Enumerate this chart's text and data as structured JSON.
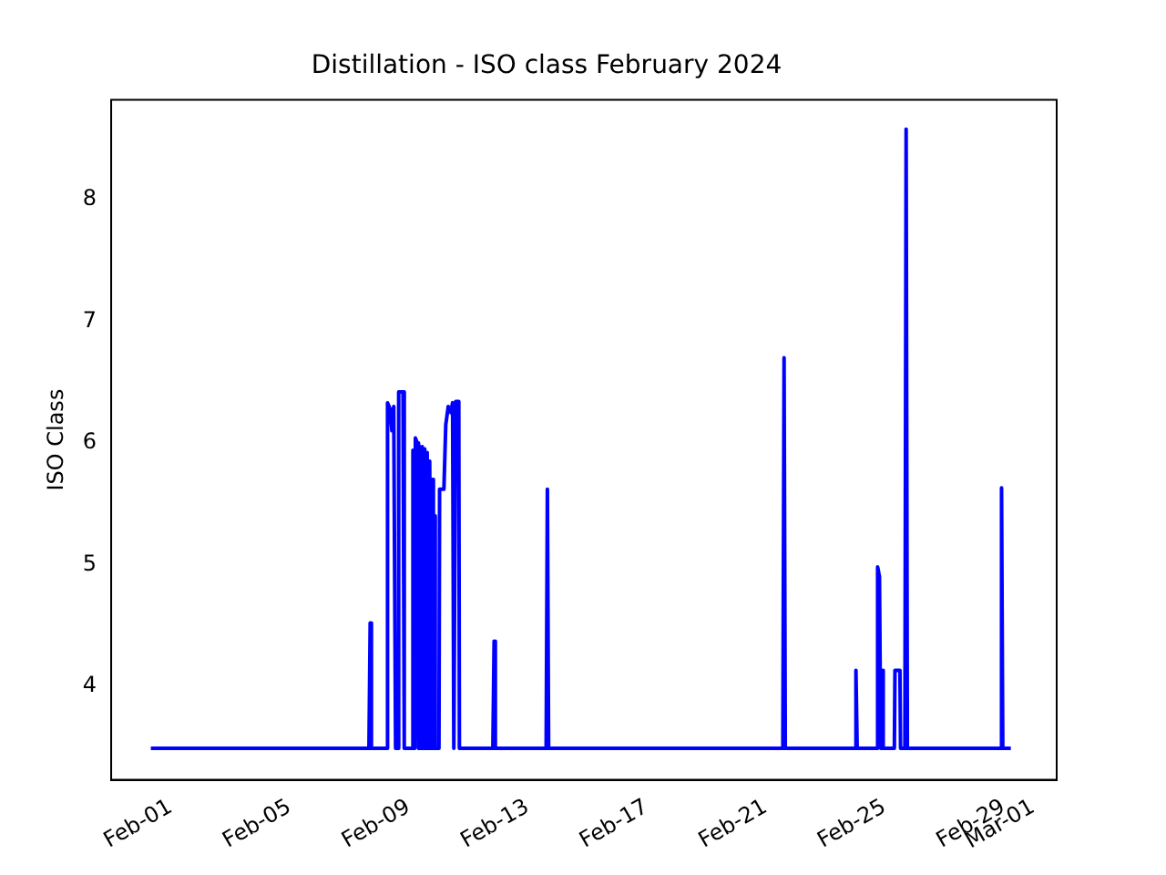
{
  "chart_data": {
    "type": "line",
    "title": "Distillation - ISO class February 2024",
    "ylabel": "ISO Class",
    "xlim": [
      "2024-01-30T00:00",
      "2024-03-01T19:00"
    ],
    "ylim": [
      3.23,
      8.82
    ],
    "yticks": [
      4,
      5,
      6,
      7,
      8
    ],
    "xticks": [
      {
        "value": "2024-02-01",
        "label": "Feb-01"
      },
      {
        "value": "2024-02-05",
        "label": "Feb-05"
      },
      {
        "value": "2024-02-09",
        "label": "Feb-09"
      },
      {
        "value": "2024-02-13",
        "label": "Feb-13"
      },
      {
        "value": "2024-02-17",
        "label": "Feb-17"
      },
      {
        "value": "2024-02-21",
        "label": "Feb-21"
      },
      {
        "value": "2024-02-25",
        "label": "Feb-25"
      },
      {
        "value": "2024-02-29",
        "label": "Feb-29"
      },
      {
        "value": "2024-03-01",
        "label": "Mar-01"
      }
    ],
    "x": [
      "2024-01-31T08:00",
      "2024-02-07T16:00",
      "2024-02-07T17:00",
      "2024-02-07T18:00",
      "2024-02-08T06:30",
      "2024-02-08T07:00",
      "2024-02-08T09:00",
      "2024-02-08T10:30",
      "2024-02-08T12:00",
      "2024-02-08T13:00",
      "2024-02-08T13:30",
      "2024-02-08T15:30",
      "2024-02-08T16:00",
      "2024-02-08T19:30",
      "2024-02-08T20:30",
      "2024-02-09T03:00",
      "2024-02-09T03:30",
      "2024-02-09T05:00",
      "2024-02-09T05:30",
      "2024-02-09T07:00",
      "2024-02-09T08:00",
      "2024-02-09T09:00",
      "2024-02-09T10:00",
      "2024-02-09T11:00",
      "2024-02-09T12:30",
      "2024-02-09T13:00",
      "2024-02-09T14:30",
      "2024-02-09T15:00",
      "2024-02-09T16:30",
      "2024-02-09T17:00",
      "2024-02-09T18:30",
      "2024-02-09T19:00",
      "2024-02-09T20:00",
      "2024-02-09T20:30",
      "2024-02-09T21:30",
      "2024-02-10T00:30",
      "2024-02-10T01:00",
      "2024-02-10T04:30",
      "2024-02-10T06:00",
      "2024-02-10T08:00",
      "2024-02-10T10:00",
      "2024-02-10T11:30",
      "2024-02-10T12:30",
      "2024-02-10T13:30",
      "2024-02-10T14:00",
      "2024-02-10T16:30",
      "2024-02-10T17:00",
      "2024-02-11T20:00",
      "2024-02-11T21:00",
      "2024-02-11T22:00",
      "2024-02-13T15:00",
      "2024-02-13T16:00",
      "2024-02-13T17:00",
      "2024-02-21T14:00",
      "2024-02-21T15:00",
      "2024-02-21T16:00",
      "2024-02-24T00:00",
      "2024-02-24T01:00",
      "2024-02-24T02:00",
      "2024-02-24T17:30",
      "2024-02-24T18:30",
      "2024-02-24T20:00",
      "2024-02-24T21:00",
      "2024-02-24T22:00",
      "2024-02-24T23:00",
      "2024-02-25T00:00",
      "2024-02-25T08:00",
      "2024-02-25T08:30",
      "2024-02-25T12:30",
      "2024-02-25T13:00",
      "2024-02-25T16:30",
      "2024-02-25T17:30",
      "2024-02-25T18:30",
      "2024-02-28T21:30",
      "2024-02-28T22:30",
      "2024-02-28T23:30",
      "2024-02-29T06:00"
    ],
    "series": [
      {
        "color": "#0000ff",
        "values": [
          3.49,
          3.49,
          4.52,
          3.49,
          3.49,
          6.33,
          6.28,
          6.1,
          6.3,
          6.3,
          3.49,
          3.49,
          6.42,
          6.42,
          3.49,
          3.49,
          5.94,
          3.49,
          6.04,
          6.0,
          3.49,
          5.97,
          3.49,
          5.97,
          3.49,
          5.95,
          3.49,
          5.92,
          3.49,
          5.85,
          3.49,
          5.7,
          3.49,
          5.4,
          3.49,
          3.49,
          5.62,
          5.62,
          6.15,
          6.3,
          6.25,
          6.33,
          3.49,
          3.49,
          6.34,
          6.34,
          3.49,
          3.49,
          4.37,
          3.49,
          3.49,
          5.62,
          3.49,
          3.49,
          6.7,
          3.49,
          3.49,
          4.13,
          3.49,
          3.49,
          4.98,
          4.9,
          3.49,
          4.13,
          3.49,
          3.49,
          3.49,
          4.13,
          4.13,
          3.49,
          3.49,
          8.58,
          3.49,
          3.49,
          5.63,
          3.49,
          3.49
        ]
      }
    ]
  }
}
